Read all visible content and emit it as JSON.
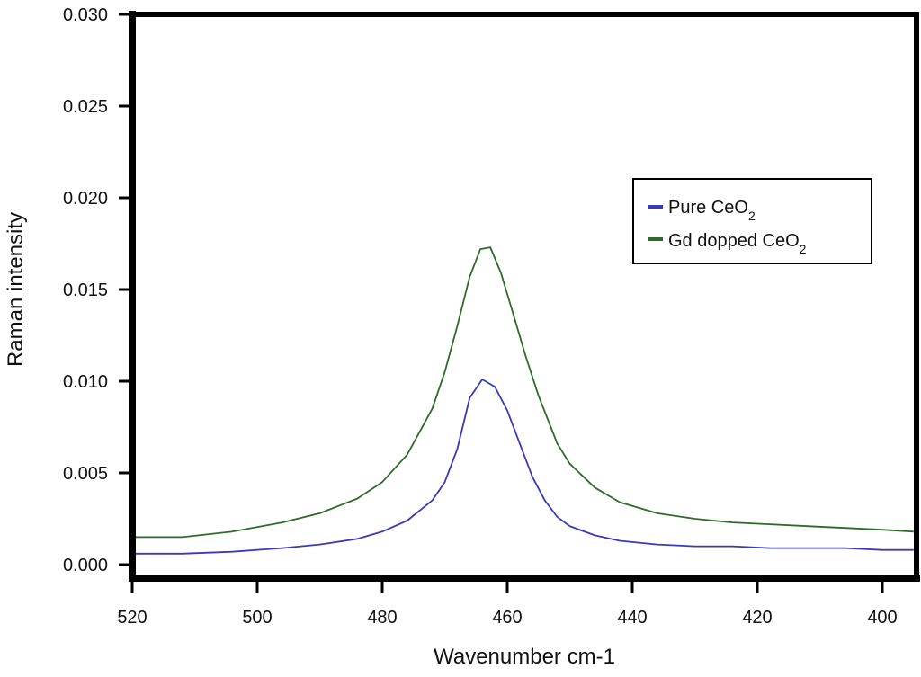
{
  "chart_data": {
    "type": "line",
    "title": "",
    "xlabel": "Wavenumber cm-1",
    "ylabel": "Raman intensity",
    "xlim": [
      520,
      395
    ],
    "ylim": [
      0.0,
      0.03
    ],
    "x_reversed": true,
    "grid": false,
    "legend_position": "right",
    "x_ticks": [
      "520",
      "500",
      "480",
      "460",
      "440",
      "420",
      "400"
    ],
    "x_tick_values": [
      520,
      500,
      480,
      460,
      440,
      420,
      400
    ],
    "y_ticks": [
      "0.000",
      "0.005",
      "0.010",
      "0.015",
      "0.020",
      "0.025",
      "0.030"
    ],
    "y_tick_values": [
      0.0,
      0.005,
      0.01,
      0.015,
      0.02,
      0.025,
      0.03
    ],
    "series": [
      {
        "name": "Pure CeO",
        "name_subscript": "2",
        "color": "#3a3ab8",
        "x": [
          520,
          512,
          504,
          496,
          490,
          484,
          480,
          476,
          472,
          470,
          468,
          466,
          464,
          462,
          460,
          458,
          456,
          454,
          452,
          450,
          446,
          442,
          436,
          430,
          424,
          418,
          412,
          406,
          400,
          395
        ],
        "y": [
          0.0006,
          0.0006,
          0.0007,
          0.0009,
          0.0011,
          0.0014,
          0.0018,
          0.0024,
          0.0035,
          0.0045,
          0.0063,
          0.0091,
          0.0101,
          0.0097,
          0.0084,
          0.0066,
          0.0048,
          0.0035,
          0.0026,
          0.0021,
          0.0016,
          0.0013,
          0.0011,
          0.001,
          0.001,
          0.0009,
          0.0009,
          0.0009,
          0.0008,
          0.0008
        ]
      },
      {
        "name": "Gd dopped CeO",
        "name_subscript": "2",
        "color": "#2e6b2a",
        "x": [
          520,
          512,
          504,
          496,
          490,
          484,
          480,
          476,
          472,
          470,
          468,
          466,
          464.3,
          462.7,
          461,
          459,
          457,
          455,
          452,
          450,
          446,
          442,
          436,
          430,
          424,
          418,
          412,
          406,
          400,
          395
        ],
        "y": [
          0.0015,
          0.0015,
          0.0018,
          0.0023,
          0.0028,
          0.0036,
          0.0045,
          0.006,
          0.0085,
          0.0105,
          0.013,
          0.0157,
          0.0172,
          0.0173,
          0.0159,
          0.0136,
          0.0113,
          0.0092,
          0.0066,
          0.0055,
          0.0042,
          0.0034,
          0.0028,
          0.0025,
          0.0023,
          0.0022,
          0.0021,
          0.002,
          0.0019,
          0.0018
        ]
      }
    ]
  }
}
